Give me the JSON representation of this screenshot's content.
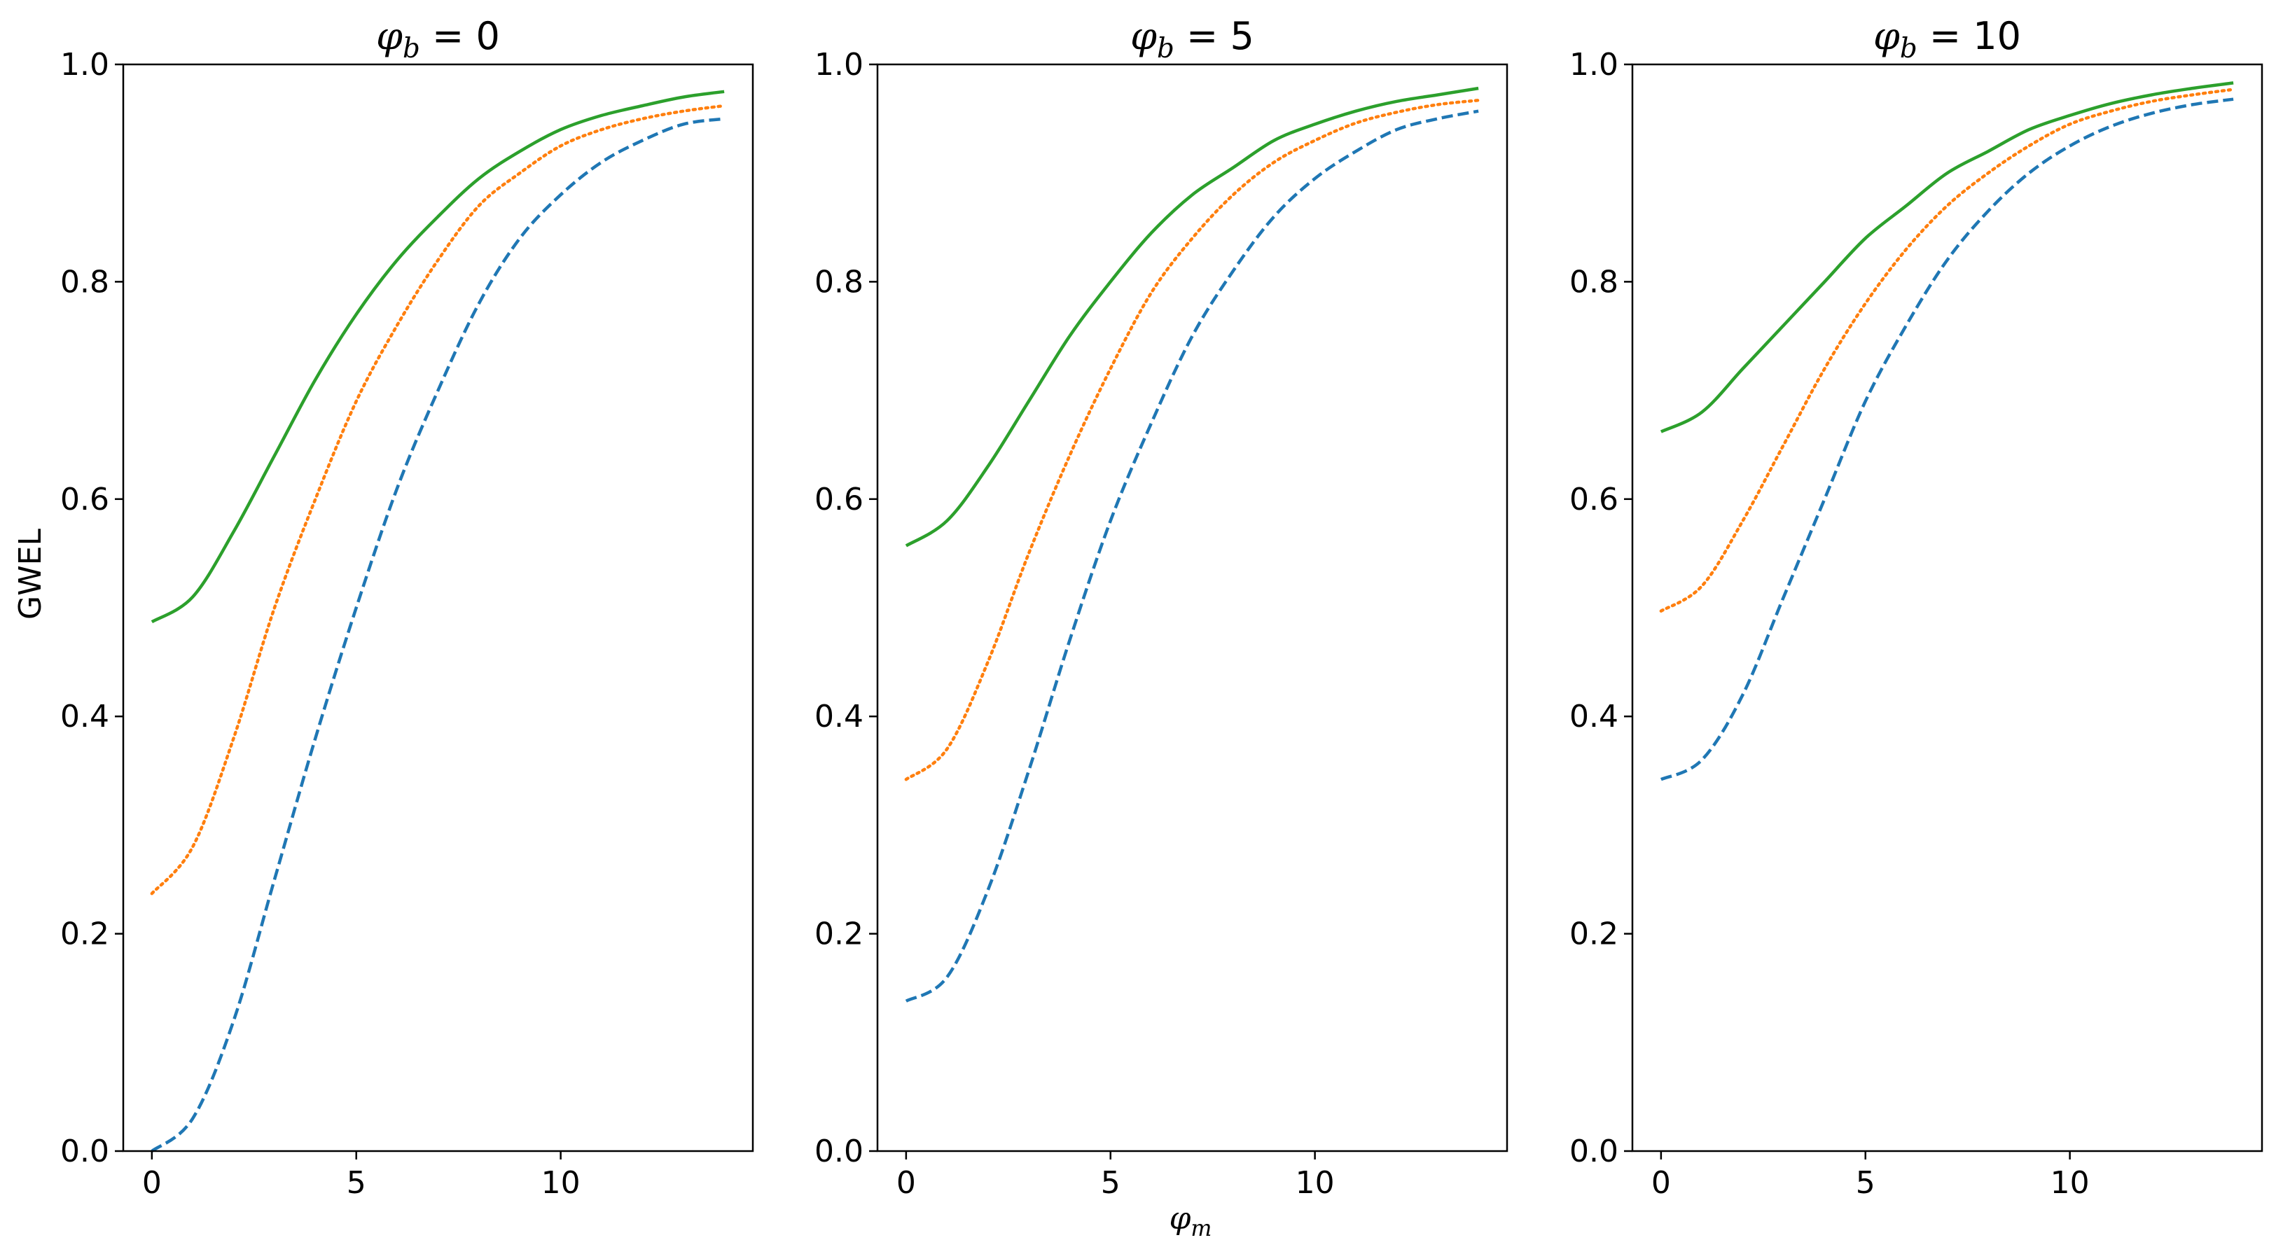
{
  "figure": {
    "shared_xlabel": {
      "symbol": "φ",
      "sub": "m"
    },
    "shared_ylabel": "GWEL"
  },
  "chart_data": [
    {
      "type": "line",
      "title": {
        "symbol": "φ",
        "sub": "b",
        "rest": " = 0"
      },
      "xlim": [
        -0.7,
        14.7
      ],
      "ylim": [
        0,
        1
      ],
      "xticks": [
        0,
        5,
        10
      ],
      "yticks": [
        "0.0",
        "0.2",
        "0.4",
        "0.6",
        "0.8",
        "1.0"
      ],
      "grid": false,
      "series": [
        {
          "color": "#1f77b4",
          "dash": "dashed",
          "x": [
            0,
            1,
            2,
            3,
            4,
            5,
            6,
            7,
            8,
            9,
            10,
            11,
            12,
            13,
            14
          ],
          "values": [
            0.0,
            0.03,
            0.12,
            0.25,
            0.38,
            0.5,
            0.61,
            0.7,
            0.78,
            0.84,
            0.88,
            0.91,
            0.93,
            0.945,
            0.95
          ]
        },
        {
          "color": "#ff7f0e",
          "dash": "dotted",
          "x": [
            0,
            1,
            2,
            3,
            4,
            5,
            6,
            7,
            8,
            9,
            10,
            11,
            12,
            13,
            14
          ],
          "values": [
            0.237,
            0.28,
            0.38,
            0.5,
            0.6,
            0.69,
            0.76,
            0.82,
            0.87,
            0.9,
            0.925,
            0.94,
            0.95,
            0.957,
            0.962
          ]
        },
        {
          "color": "#2ca02c",
          "dash": "solid",
          "x": [
            0,
            1,
            2,
            3,
            4,
            5,
            6,
            7,
            8,
            9,
            10,
            11,
            12,
            13,
            14
          ],
          "values": [
            0.487,
            0.51,
            0.57,
            0.64,
            0.71,
            0.77,
            0.82,
            0.86,
            0.895,
            0.92,
            0.94,
            0.953,
            0.962,
            0.97,
            0.975
          ]
        }
      ]
    },
    {
      "type": "line",
      "title": {
        "symbol": "φ",
        "sub": "b",
        "rest": " = 5"
      },
      "xlim": [
        -0.7,
        14.7
      ],
      "ylim": [
        0,
        1
      ],
      "xticks": [
        0,
        5,
        10
      ],
      "yticks": [
        "0.0",
        "0.2",
        "0.4",
        "0.6",
        "0.8",
        "1.0"
      ],
      "grid": false,
      "series": [
        {
          "color": "#1f77b4",
          "dash": "dashed",
          "x": [
            0,
            1,
            2,
            3,
            4,
            5,
            6,
            7,
            8,
            9,
            10,
            11,
            12,
            13,
            14
          ],
          "values": [
            0.138,
            0.16,
            0.24,
            0.35,
            0.47,
            0.58,
            0.67,
            0.75,
            0.81,
            0.86,
            0.895,
            0.92,
            0.94,
            0.95,
            0.957
          ]
        },
        {
          "color": "#ff7f0e",
          "dash": "dotted",
          "x": [
            0,
            1,
            2,
            3,
            4,
            5,
            6,
            7,
            8,
            9,
            10,
            11,
            12,
            13,
            14
          ],
          "values": [
            0.342,
            0.37,
            0.45,
            0.55,
            0.64,
            0.72,
            0.79,
            0.84,
            0.88,
            0.91,
            0.93,
            0.946,
            0.956,
            0.963,
            0.967
          ]
        },
        {
          "color": "#2ca02c",
          "dash": "solid",
          "x": [
            0,
            1,
            2,
            3,
            4,
            5,
            6,
            7,
            8,
            9,
            10,
            11,
            12,
            13,
            14
          ],
          "values": [
            0.557,
            0.58,
            0.63,
            0.69,
            0.75,
            0.8,
            0.845,
            0.88,
            0.905,
            0.93,
            0.945,
            0.957,
            0.966,
            0.972,
            0.978
          ]
        }
      ]
    },
    {
      "type": "line",
      "title": {
        "symbol": "φ",
        "sub": "b",
        "rest": " = 10"
      },
      "xlim": [
        -0.7,
        14.7
      ],
      "ylim": [
        0,
        1
      ],
      "xticks": [
        0,
        5,
        10
      ],
      "yticks": [
        "0.0",
        "0.2",
        "0.4",
        "0.6",
        "0.8",
        "1.0"
      ],
      "grid": false,
      "series": [
        {
          "color": "#1f77b4",
          "dash": "dashed",
          "x": [
            0,
            1,
            2,
            3,
            4,
            5,
            6,
            7,
            8,
            9,
            10,
            11,
            12,
            13,
            14
          ],
          "values": [
            0.342,
            0.36,
            0.42,
            0.51,
            0.6,
            0.69,
            0.76,
            0.82,
            0.865,
            0.9,
            0.925,
            0.943,
            0.955,
            0.963,
            0.968
          ]
        },
        {
          "color": "#ff7f0e",
          "dash": "dotted",
          "x": [
            0,
            1,
            2,
            3,
            4,
            5,
            6,
            7,
            8,
            9,
            10,
            11,
            12,
            13,
            14
          ],
          "values": [
            0.497,
            0.52,
            0.58,
            0.65,
            0.72,
            0.78,
            0.83,
            0.87,
            0.9,
            0.925,
            0.945,
            0.957,
            0.966,
            0.972,
            0.977
          ]
        },
        {
          "color": "#2ca02c",
          "dash": "solid",
          "x": [
            0,
            1,
            2,
            3,
            4,
            5,
            6,
            7,
            8,
            9,
            10,
            11,
            12,
            13,
            14
          ],
          "values": [
            0.662,
            0.68,
            0.72,
            0.76,
            0.8,
            0.84,
            0.87,
            0.9,
            0.92,
            0.94,
            0.953,
            0.964,
            0.972,
            0.978,
            0.983
          ]
        }
      ]
    }
  ]
}
